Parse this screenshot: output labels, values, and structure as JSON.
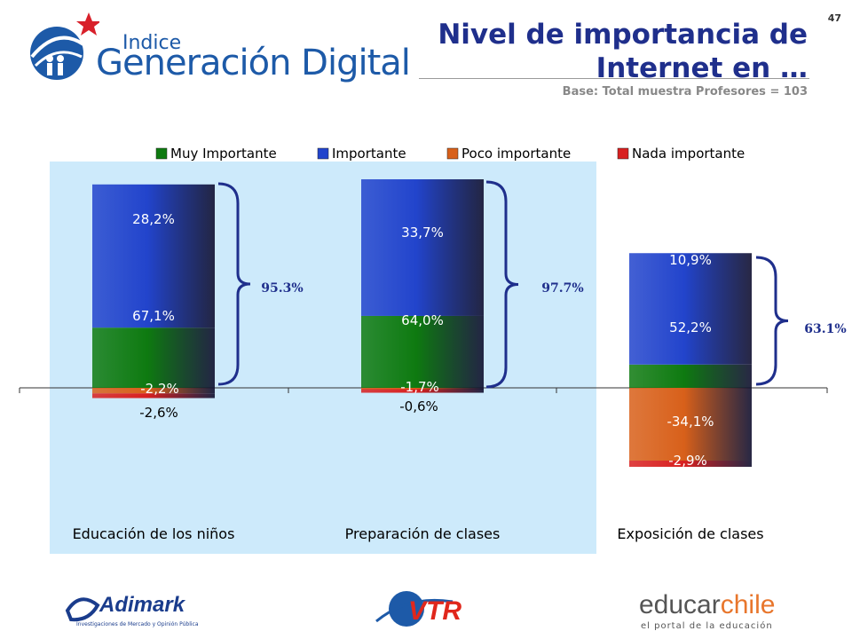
{
  "page_number": "47",
  "header": {
    "title": "Nivel de importancia de Internet en …",
    "subtitle": "Base: Total muestra Profesores = 103",
    "logo_small": "Indice",
    "logo_big": "Generación Digital"
  },
  "footer": {
    "adimark_name": "Adimark",
    "adimark_tag": "Investigaciones de Mercado y Opinión Pública",
    "vtr_name": "VTR",
    "educar_name_a": "educar",
    "educar_name_b": "chile",
    "educar_tag": "el portal de la educación"
  },
  "colors": {
    "muy_importante": "#0e7a10",
    "importante": "#2244cc",
    "poco_importante": "#d8601a",
    "nada_importante": "#d82020",
    "panel": "#cdeafb",
    "brace": "#1f2f8c"
  },
  "chart_data": {
    "type": "bar",
    "stacked": true,
    "diverging": true,
    "categories": [
      "Educación de los niños",
      "Preparación de clases",
      "Exposición de clases"
    ],
    "series": [
      {
        "name": "Muy Importante",
        "values": [
          28.2,
          33.7,
          10.9
        ],
        "labels": [
          "28,2%",
          "33,7%",
          "10,9%"
        ]
      },
      {
        "name": "Importante",
        "values": [
          67.1,
          64.0,
          52.2
        ],
        "labels": [
          "67,1%",
          "64,0%",
          "52,2%"
        ]
      },
      {
        "name": "Poco importante",
        "values": [
          -2.6,
          -0.6,
          -34.1
        ],
        "labels": [
          "-2,6%",
          "-0,6%",
          "-34,1%"
        ]
      },
      {
        "name": "Nada importante",
        "values": [
          -2.2,
          -1.7,
          -2.9
        ],
        "labels": [
          "-2,2%",
          "-1,7%",
          "-2,9%"
        ]
      }
    ],
    "totals": [
      "95.3%",
      "97.7%",
      "63.1%"
    ],
    "legend": "top",
    "grid": false
  }
}
